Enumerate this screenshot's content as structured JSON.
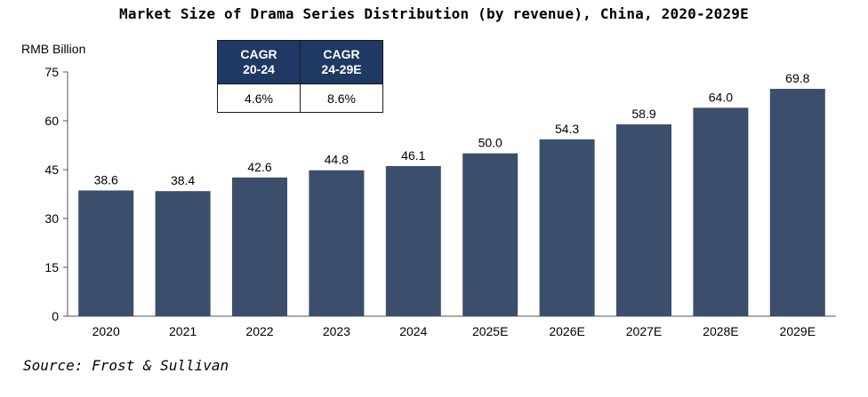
{
  "title": "Market Size of Drama Series Distribution (by revenue), China, 2020-2029E",
  "source": "Source: Frost & Sullivan",
  "cagr_table": {
    "headers": [
      {
        "line1": "CAGR",
        "line2": "20-24"
      },
      {
        "line1": "CAGR",
        "line2": "24-29E"
      }
    ],
    "values": [
      "4.6%",
      "8.6%"
    ]
  },
  "chart_data": {
    "type": "bar",
    "title": "Market Size of Drama Series Distribution (by revenue), China, 2020-2029E",
    "ylabel": "RMB Billion",
    "xlabel": "",
    "categories": [
      "2020",
      "2021",
      "2022",
      "2023",
      "2024",
      "2025E",
      "2026E",
      "2027E",
      "2028E",
      "2029E"
    ],
    "values": [
      38.6,
      38.4,
      42.6,
      44.8,
      46.1,
      50.0,
      54.3,
      58.9,
      64.0,
      69.8
    ],
    "value_labels": [
      "38.6",
      "38.4",
      "42.6",
      "44.8",
      "46.1",
      "50.0",
      "54.3",
      "58.9",
      "64.0",
      "69.8"
    ],
    "ylim": [
      0,
      75
    ],
    "yticks": [
      0,
      15,
      30,
      45,
      60,
      75
    ],
    "grid": false,
    "bar_color": "#3b4e6b"
  }
}
